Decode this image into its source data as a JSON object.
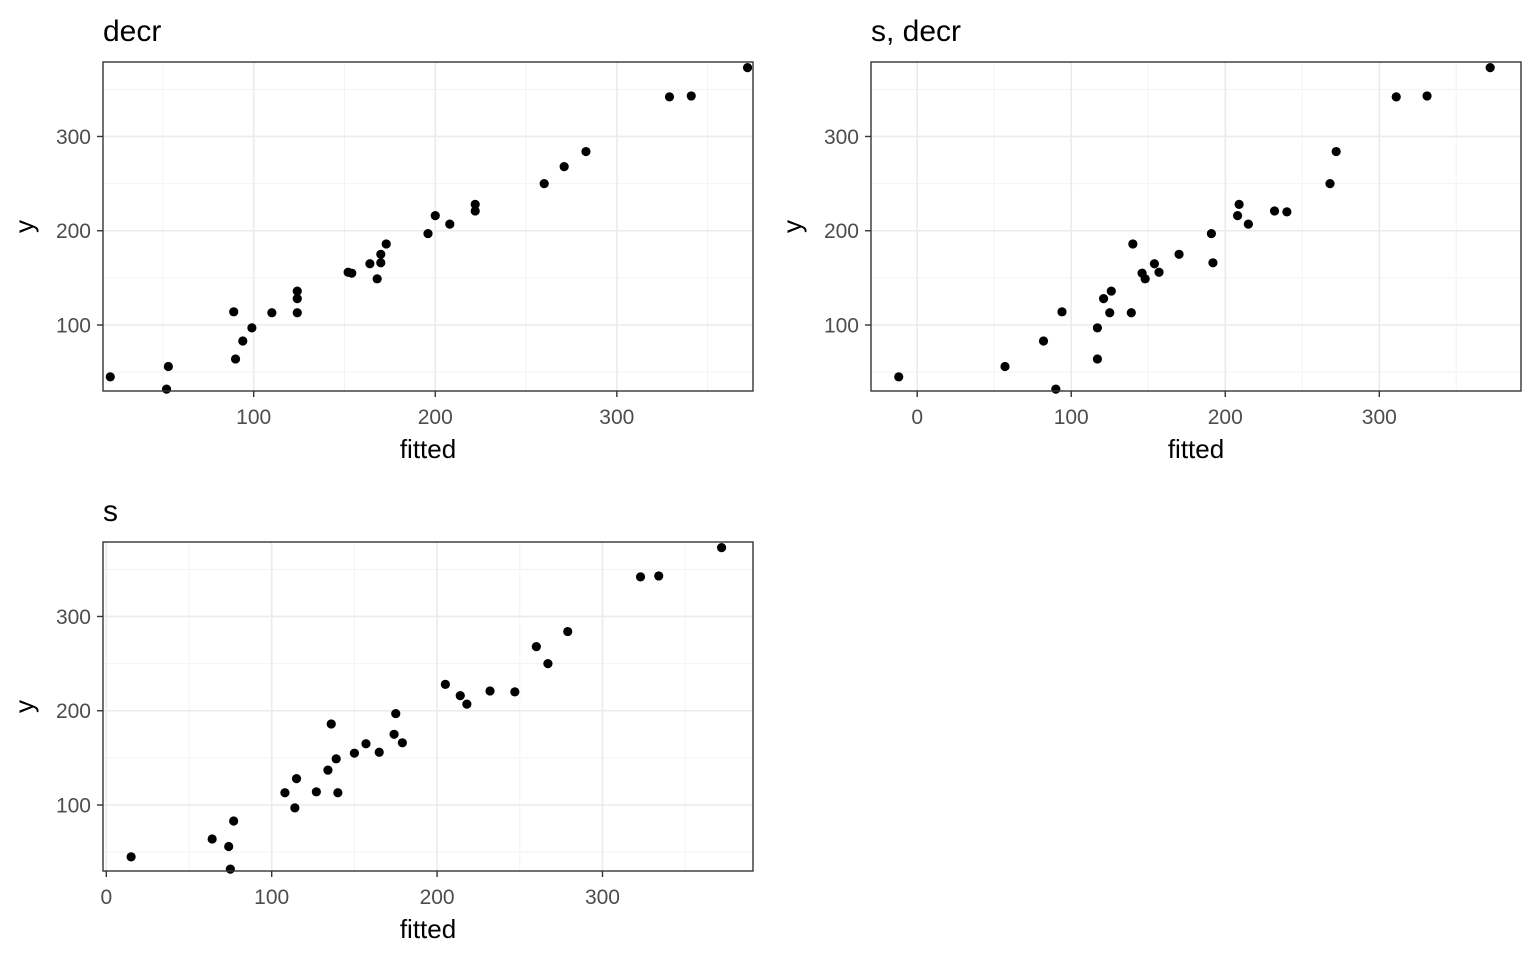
{
  "chart_data": [
    {
      "type": "scatter",
      "title": "decr",
      "xlabel": "fitted",
      "ylabel": "y",
      "xlim": [
        17,
        375
      ],
      "ylim": [
        30,
        379
      ],
      "xticks": [
        100,
        200,
        300
      ],
      "yticks": [
        100,
        200,
        300
      ],
      "grid": true,
      "x": [
        21,
        52,
        53,
        89,
        90,
        94,
        99,
        110,
        124,
        124,
        124,
        152,
        154,
        164,
        168,
        170,
        170,
        173,
        196,
        200,
        208,
        222,
        222,
        260,
        271,
        283,
        329,
        341,
        372
      ],
      "y": [
        45,
        32,
        56,
        114,
        64,
        83,
        97,
        113,
        136,
        128,
        113,
        156,
        155,
        165,
        149,
        166,
        175,
        186,
        197,
        216,
        207,
        228,
        221,
        250,
        268,
        284,
        342,
        343,
        373
      ]
    },
    {
      "type": "scatter",
      "title": "s, decr",
      "xlabel": "fitted",
      "ylabel": "y",
      "xlim": [
        -30,
        392
      ],
      "ylim": [
        30,
        379
      ],
      "xticks": [
        0,
        100,
        200,
        300
      ],
      "yticks": [
        100,
        200,
        300
      ],
      "grid": true,
      "x": [
        -12,
        57,
        82,
        90,
        94,
        117,
        117,
        121,
        125,
        126,
        139,
        140,
        146,
        148,
        154,
        157,
        170,
        191,
        192,
        208,
        209,
        215,
        232,
        240,
        268,
        272,
        311,
        331,
        372
      ],
      "y": [
        45,
        56,
        83,
        32,
        114,
        97,
        64,
        128,
        113,
        136,
        113,
        186,
        155,
        149,
        165,
        156,
        175,
        197,
        166,
        216,
        228,
        207,
        221,
        220,
        250,
        284,
        342,
        343,
        373
      ]
    },
    {
      "type": "scatter",
      "title": "s",
      "xlabel": "fitted",
      "ylabel": "y",
      "xlim": [
        -2,
        391
      ],
      "ylim": [
        30,
        379
      ],
      "xticks": [
        0,
        100,
        200,
        300
      ],
      "yticks": [
        100,
        200,
        300
      ],
      "grid": true,
      "x": [
        15,
        64,
        74,
        75,
        77,
        108,
        114,
        115,
        127,
        134,
        136,
        139,
        140,
        150,
        157,
        165,
        174,
        175,
        179,
        205,
        214,
        218,
        232,
        247,
        260,
        267,
        279,
        323,
        334,
        372
      ],
      "y": [
        45,
        64,
        56,
        32,
        83,
        113,
        97,
        128,
        114,
        137,
        186,
        149,
        113,
        155,
        165,
        156,
        175,
        197,
        166,
        228,
        216,
        207,
        221,
        220,
        268,
        250,
        284,
        342,
        343,
        373
      ]
    }
  ]
}
